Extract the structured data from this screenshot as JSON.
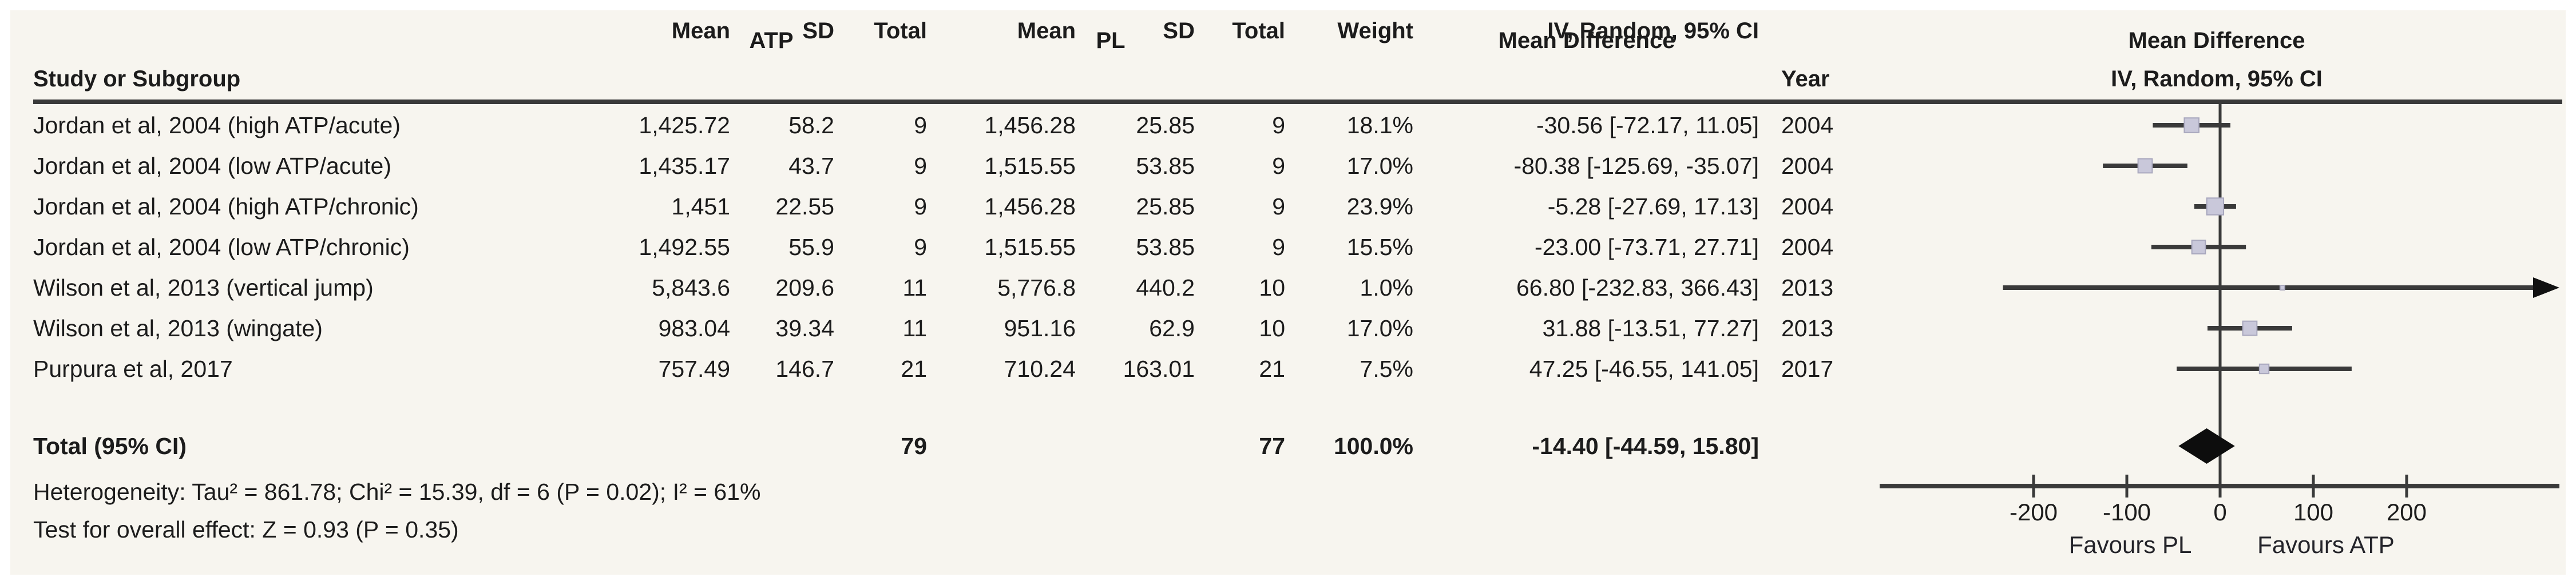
{
  "table": {
    "group1_label": "ATP",
    "group2_label": "PL",
    "headers": {
      "study": "Study or Subgroup",
      "mean": "Mean",
      "sd": "SD",
      "total": "Total",
      "weight": "Weight",
      "effect_line1": "Mean Difference",
      "effect_line2": "IV, Random, 95% CI",
      "year": "Year",
      "plot_line1": "Mean Difference",
      "plot_line2": "IV, Random, 95% CI"
    },
    "rows": [
      {
        "study": "Jordan et al, 2004 (high ATP/acute)",
        "atp_mean": "1,425.72",
        "atp_sd": "58.2",
        "atp_total": "9",
        "pl_mean": "1,456.28",
        "pl_sd": "25.85",
        "pl_total": "9",
        "weight": "18.1%",
        "ci": "-30.56 [-72.17, 11.05]",
        "year": "2004"
      },
      {
        "study": "Jordan et al, 2004 (low ATP/acute)",
        "atp_mean": "1,435.17",
        "atp_sd": "43.7",
        "atp_total": "9",
        "pl_mean": "1,515.55",
        "pl_sd": "53.85",
        "pl_total": "9",
        "weight": "17.0%",
        "ci": "-80.38 [-125.69, -35.07]",
        "year": "2004"
      },
      {
        "study": "Jordan et al, 2004 (high ATP/chronic)",
        "atp_mean": "1,451",
        "atp_sd": "22.55",
        "atp_total": "9",
        "pl_mean": "1,456.28",
        "pl_sd": "25.85",
        "pl_total": "9",
        "weight": "23.9%",
        "ci": "-5.28 [-27.69, 17.13]",
        "year": "2004"
      },
      {
        "study": "Jordan et al, 2004 (low ATP/chronic)",
        "atp_mean": "1,492.55",
        "atp_sd": "55.9",
        "atp_total": "9",
        "pl_mean": "1,515.55",
        "pl_sd": "53.85",
        "pl_total": "9",
        "weight": "15.5%",
        "ci": "-23.00 [-73.71, 27.71]",
        "year": "2004"
      },
      {
        "study": "Wilson et al, 2013 (vertical jump)",
        "atp_mean": "5,843.6",
        "atp_sd": "209.6",
        "atp_total": "11",
        "pl_mean": "5,776.8",
        "pl_sd": "440.2",
        "pl_total": "10",
        "weight": "1.0%",
        "ci": "66.80 [-232.83, 366.43]",
        "year": "2013"
      },
      {
        "study": "Wilson et al, 2013 (wingate)",
        "atp_mean": "983.04",
        "atp_sd": "39.34",
        "atp_total": "11",
        "pl_mean": "951.16",
        "pl_sd": "62.9",
        "pl_total": "10",
        "weight": "17.0%",
        "ci": "31.88 [-13.51, 77.27]",
        "year": "2013"
      },
      {
        "study": "Purpura et al, 2017",
        "atp_mean": "757.49",
        "atp_sd": "146.7",
        "atp_total": "21",
        "pl_mean": "710.24",
        "pl_sd": "163.01",
        "pl_total": "21",
        "weight": "7.5%",
        "ci": "47.25 [-46.55, 141.05]",
        "year": "2017"
      }
    ],
    "total": {
      "label": "Total (95% CI)",
      "atp_total": "79",
      "pl_total": "77",
      "weight": "100.0%",
      "ci": "-14.40 [-44.59, 15.80]"
    },
    "heterogeneity": "Heterogeneity: Tau² = 861.78; Chi² = 15.39, df = 6 (P = 0.02); I² = 61%",
    "overall_effect": "Test for overall effect: Z = 0.93 (P = 0.35)"
  },
  "chart_data": {
    "type": "forest",
    "effect_measure": "Mean Difference",
    "model": "IV, Random, 95% CI",
    "studies": [
      {
        "name": "Jordan et al, 2004 (high ATP/acute)",
        "md": -30.56,
        "lcl": -72.17,
        "ucl": 11.05,
        "weight_pct": 18.1,
        "year": 2004
      },
      {
        "name": "Jordan et al, 2004 (low ATP/acute)",
        "md": -80.38,
        "lcl": -125.69,
        "ucl": -35.07,
        "weight_pct": 17.0,
        "year": 2004
      },
      {
        "name": "Jordan et al, 2004 (high ATP/chronic)",
        "md": -5.28,
        "lcl": -27.69,
        "ucl": 17.13,
        "weight_pct": 23.9,
        "year": 2004
      },
      {
        "name": "Jordan et al, 2004 (low ATP/chronic)",
        "md": -23.0,
        "lcl": -73.71,
        "ucl": 27.71,
        "weight_pct": 15.5,
        "year": 2004
      },
      {
        "name": "Wilson et al, 2013 (vertical jump)",
        "md": 66.8,
        "lcl": -232.83,
        "ucl": 366.43,
        "weight_pct": 1.0,
        "year": 2013
      },
      {
        "name": "Wilson et al, 2013 (wingate)",
        "md": 31.88,
        "lcl": -13.51,
        "ucl": 77.27,
        "weight_pct": 17.0,
        "year": 2013
      },
      {
        "name": "Purpura et al, 2017",
        "md": 47.25,
        "lcl": -46.55,
        "ucl": 141.05,
        "weight_pct": 7.5,
        "year": 2017
      }
    ],
    "total": {
      "md": -14.4,
      "lcl": -44.59,
      "ucl": 15.8
    },
    "xlim": [
      -365,
      364
    ],
    "ticks": [
      -200,
      -100,
      0,
      100,
      200
    ],
    "tick_labels": [
      "-200",
      "-100",
      "0",
      "100",
      "200"
    ],
    "favours_left": "Favours PL",
    "favours_right": "Favours ATP",
    "legend_position": "bottom",
    "grid": false
  },
  "colors": {
    "background": "#f7f5ef",
    "text": "#1c1c1c",
    "line": "#3a3a3a",
    "square_fill": "#c9c8da",
    "square_border": "#a8a7bd",
    "diamond": "#0d0d0d"
  }
}
